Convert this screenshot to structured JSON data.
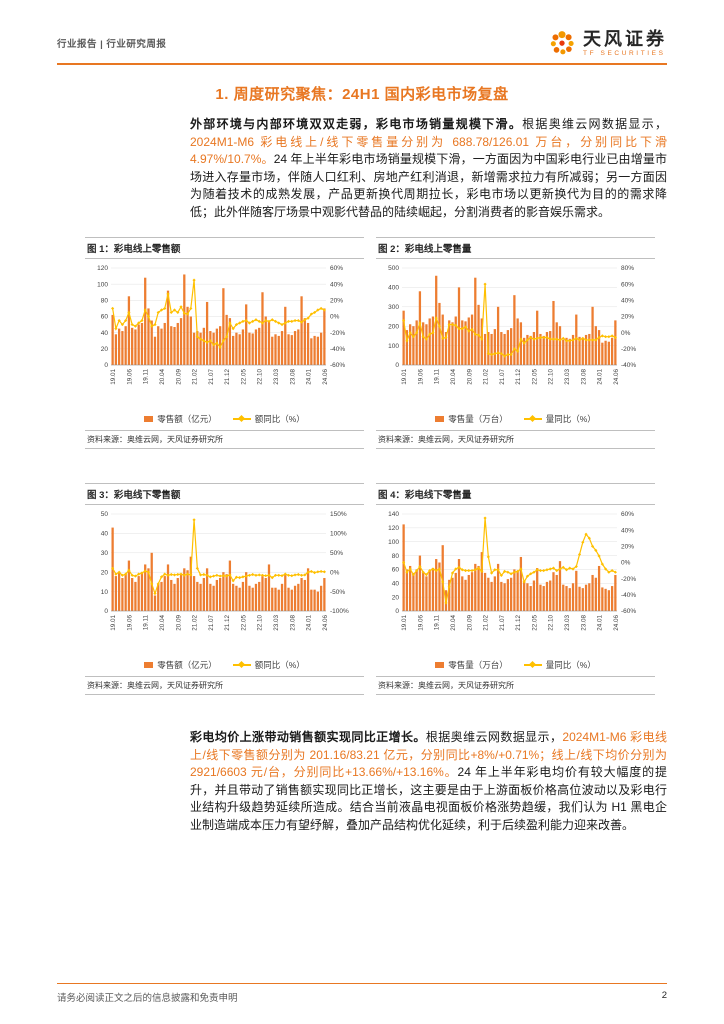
{
  "header": {
    "left": "行业报告 | 行业研究周报",
    "brand": {
      "name": "天风证券",
      "sub": "TF SECURITIES"
    }
  },
  "title": "1. 周度研究聚焦：24H1 国内彩电市场复盘",
  "paragraphs": [
    {
      "segments": [
        {
          "style": "bold",
          "text": "外部环境与内部环境双双走弱，彩电市场销量规模下滑。"
        },
        {
          "style": "normal",
          "text": "根据奥维云网数据显示，"
        },
        {
          "style": "orange",
          "text": "2024M1-M6 彩电线上/线下零售量分别为 688.78/126.01 万台，分别同比下滑 4.97%/10.7%。"
        },
        {
          "style": "normal",
          "text": "24 年上半年彩电市场销量规模下滑，一方面因为中国彩电行业已由增量市场进入存量市场，伴随人口红利、房地产红利消退，新增需求拉力有所减弱；另一方面因为随着技术的成熟发展，产品更新换代周期拉长，彩电市场以更新换代为目的的需求降低；此外伴随客厅场景中观影代替品的陆续崛起，分割消费者的影音娱乐需求。"
        }
      ]
    },
    {
      "segments": [
        {
          "style": "bold",
          "text": "彩电均价上涨带动销售额实现同比正增长。"
        },
        {
          "style": "normal",
          "text": "根据奥维云网数据显示，"
        },
        {
          "style": "orange",
          "text": "2024M1-M6 彩电线上/线下零售额分别为 201.16/83.21 亿元，分别同比+8%/+0.71%；线上/线下均价分别为 2921/6603 元/台，分别同比+13.66%/+13.16%。"
        },
        {
          "style": "normal",
          "text": "24 年上半年彩电均价有较大幅度的提升，并且带动了销售额实现同比正增长，这主要是由于上游面板价格高位波动以及彩电行业结构升级趋势延续所造成。结合当前液晶电视面板价格涨势趋缓，我们认为 H1 黑电企业制造端成本压力有望纾解，叠加产品结构优化延续，利于后续盈利能力迎来改善。"
        }
      ]
    }
  ],
  "charts_source": "资料来源：奥维云网，天风证券研究所",
  "colors": {
    "accent": "#e87722",
    "bar": "#ed7d31",
    "line": "#ffc000"
  },
  "chart_data": [
    {
      "type": "bar+line",
      "title": "图 1：彩电线上零售额",
      "legend": [
        "零售额（亿元）",
        "额同比（%）"
      ],
      "x_start": "19.01",
      "x_end": "24.06",
      "x_freq": "monthly",
      "x_ticks": [
        "19.01",
        "19.06",
        "19.11",
        "20.04",
        "20.09",
        "21.02",
        "21.07",
        "21.12",
        "22.05",
        "22.10",
        "23.03",
        "23.08",
        "24.01",
        "24.06"
      ],
      "left_axis": {
        "min": 0,
        "max": 120,
        "ticks": [
          0,
          20,
          40,
          60,
          80,
          100,
          120
        ]
      },
      "right_axis": {
        "min": -60,
        "max": 60,
        "ticks": [
          -60,
          -40,
          -20,
          0,
          20,
          40,
          60
        ],
        "suffix": "%"
      },
      "bars": [
        62,
        38,
        45,
        42,
        48,
        85,
        46,
        44,
        50,
        52,
        108,
        70,
        55,
        35,
        48,
        45,
        52,
        92,
        48,
        47,
        52,
        58,
        112,
        72,
        60,
        40,
        42,
        40,
        46,
        78,
        42,
        40,
        45,
        48,
        95,
        62,
        58,
        36,
        40,
        38,
        44,
        75,
        40,
        39,
        44,
        46,
        90,
        60,
        55,
        35,
        38,
        36,
        42,
        72,
        38,
        37,
        42,
        44,
        85,
        58,
        52,
        33,
        36,
        35,
        40,
        70
      ],
      "line": [
        10,
        -15,
        -5,
        -10,
        -5,
        5,
        -10,
        -12,
        -8,
        -5,
        8,
        0,
        -12,
        -10,
        5,
        8,
        10,
        28,
        5,
        8,
        5,
        12,
        4,
        3,
        10,
        45,
        -25,
        -28,
        -30,
        -32,
        -30,
        -35,
        -33,
        -38,
        -30,
        -25,
        -8,
        -15,
        -10,
        -8,
        -6,
        -5,
        -8,
        -6,
        -4,
        -6,
        -8,
        -5,
        -6,
        -4,
        -6,
        -8,
        -10,
        -8,
        -6,
        -6,
        -5,
        -5,
        -7,
        -4,
        -2,
        3,
        5,
        8,
        10,
        8
      ]
    },
    {
      "type": "bar+line",
      "title": "图 2：彩电线上零售量",
      "legend": [
        "零售量（万台）",
        "量同比（%）"
      ],
      "x_start": "19.01",
      "x_end": "24.06",
      "x_freq": "monthly",
      "x_ticks": [
        "19.01",
        "19.06",
        "19.11",
        "20.04",
        "20.09",
        "21.02",
        "21.07",
        "21.12",
        "22.05",
        "22.10",
        "23.03",
        "23.08",
        "24.01",
        "24.06"
      ],
      "left_axis": {
        "min": 0,
        "max": 500,
        "ticks": [
          0,
          100,
          200,
          300,
          400,
          500
        ]
      },
      "right_axis": {
        "min": -40,
        "max": 80,
        "ticks": [
          -40,
          -20,
          0,
          20,
          40,
          60,
          80
        ],
        "suffix": "%"
      },
      "bars": [
        280,
        180,
        210,
        200,
        230,
        380,
        220,
        210,
        240,
        250,
        460,
        320,
        260,
        170,
        230,
        220,
        250,
        400,
        230,
        225,
        245,
        260,
        450,
        310,
        240,
        160,
        170,
        160,
        185,
        300,
        170,
        160,
        180,
        190,
        360,
        240,
        220,
        140,
        155,
        150,
        170,
        280,
        160,
        150,
        170,
        175,
        330,
        220,
        200,
        130,
        140,
        135,
        155,
        260,
        145,
        140,
        155,
        160,
        300,
        200,
        180,
        115,
        125,
        120,
        140,
        230
      ],
      "line": [
        15,
        -10,
        0,
        -5,
        0,
        12,
        -5,
        -8,
        -2,
        0,
        18,
        8,
        -7,
        -6,
        10,
        10,
        9,
        5,
        5,
        7,
        2,
        4,
        -2,
        -3,
        -8,
        60,
        -26,
        -27,
        -26,
        -25,
        -26,
        -29,
        -27,
        -27,
        -20,
        -23,
        -8,
        -13,
        -9,
        -6,
        -8,
        -7,
        -6,
        -6,
        -6,
        -8,
        -8,
        -8,
        -9,
        -7,
        -10,
        -10,
        -9,
        -7,
        -9,
        -7,
        -9,
        -9,
        -9,
        -9,
        -6,
        -4,
        -5,
        -5,
        -4,
        -6
      ]
    },
    {
      "type": "bar+line",
      "title": "图 3：彩电线下零售额",
      "legend": [
        "零售额（亿元）",
        "额同比（%）"
      ],
      "x_start": "19.01",
      "x_end": "24.06",
      "x_freq": "monthly",
      "x_ticks": [
        "19.01",
        "19.06",
        "19.11",
        "20.04",
        "20.09",
        "21.02",
        "21.07",
        "21.12",
        "22.05",
        "22.10",
        "23.03",
        "23.08",
        "24.01",
        "24.06"
      ],
      "left_axis": {
        "min": 0,
        "max": 50,
        "ticks": [
          0,
          10,
          20,
          30,
          40,
          50
        ]
      },
      "right_axis": {
        "min": -100,
        "max": 150,
        "ticks": [
          -100,
          -50,
          0,
          50,
          100,
          150
        ],
        "suffix": "%"
      },
      "bars": [
        43,
        18,
        20,
        17,
        19,
        26,
        17,
        15,
        18,
        20,
        24,
        22,
        30,
        8,
        14,
        15,
        18,
        24,
        16,
        14,
        17,
        19,
        22,
        21,
        28,
        18,
        15,
        14,
        17,
        22,
        14,
        13,
        16,
        17,
        20,
        19,
        26,
        14,
        13,
        12,
        15,
        20,
        13,
        12,
        14,
        15,
        18,
        17,
        24,
        12,
        12,
        11,
        14,
        19,
        12,
        11,
        13,
        14,
        17,
        16,
        22,
        11,
        11,
        10,
        13,
        17
      ],
      "line": [
        10,
        -5,
        0,
        -8,
        -5,
        5,
        -8,
        -10,
        -5,
        -2,
        3,
        0,
        -30,
        -55,
        -30,
        -12,
        -5,
        -8,
        -6,
        -7,
        -6,
        -5,
        -8,
        -5,
        -7,
        135,
        10,
        -7,
        -6,
        -8,
        -12,
        -10,
        -8,
        -10,
        -9,
        -10,
        -7,
        -22,
        -13,
        -14,
        -12,
        -10,
        -8,
        -6,
        -8,
        -7,
        -8,
        -9,
        -8,
        -14,
        -8,
        -8,
        -9,
        -5,
        -8,
        -9,
        -7,
        -6,
        -8,
        -7,
        0,
        2,
        -1,
        1,
        2,
        1
      ]
    },
    {
      "type": "bar+line",
      "title": "图 4：彩电线下零售量",
      "legend": [
        "零售量（万台）",
        "量同比（%）"
      ],
      "x_start": "19.01",
      "x_end": "24.06",
      "x_freq": "monthly",
      "x_ticks": [
        "19.01",
        "19.06",
        "19.11",
        "20.04",
        "20.09",
        "21.02",
        "21.07",
        "21.12",
        "22.05",
        "22.10",
        "23.03",
        "23.08",
        "24.01",
        "24.06"
      ],
      "left_axis": {
        "min": 0,
        "max": 140,
        "ticks": [
          0,
          20,
          40,
          60,
          80,
          100,
          120,
          140
        ]
      },
      "right_axis": {
        "min": -60,
        "max": 60,
        "ticks": [
          -60,
          -40,
          -20,
          0,
          20,
          40,
          60
        ],
        "suffix": "%"
      },
      "bars": [
        125,
        60,
        65,
        55,
        60,
        80,
        55,
        50,
        58,
        62,
        75,
        70,
        95,
        30,
        45,
        48,
        55,
        75,
        50,
        45,
        52,
        56,
        68,
        65,
        85,
        55,
        48,
        42,
        50,
        68,
        42,
        40,
        46,
        48,
        60,
        58,
        78,
        42,
        40,
        36,
        44,
        62,
        38,
        36,
        42,
        44,
        56,
        52,
        72,
        38,
        36,
        33,
        40,
        58,
        35,
        33,
        38,
        40,
        52,
        48,
        65,
        34,
        32,
        30,
        36,
        52
      ],
      "line": [
        0,
        -12,
        -8,
        -15,
        -10,
        -5,
        -12,
        -15,
        -10,
        -8,
        -10,
        -8,
        -24,
        -50,
        -30,
        -13,
        -8,
        -6,
        -9,
        -10,
        -10,
        -10,
        -9,
        -7,
        -11,
        55,
        7,
        -13,
        -9,
        -9,
        -16,
        -11,
        -12,
        -14,
        -12,
        -11,
        -8,
        -24,
        -17,
        -14,
        -12,
        -9,
        -10,
        -10,
        -9,
        -8,
        -7,
        -10,
        -8,
        -6,
        -9,
        -7,
        -8,
        -5,
        10,
        25,
        35,
        30,
        20,
        15,
        8,
        -2,
        -8,
        -12,
        -10,
        -12
      ]
    }
  ],
  "footer": {
    "disclaimer": "请务必阅读正文之后的信息披露和免责申明",
    "page": "2"
  }
}
